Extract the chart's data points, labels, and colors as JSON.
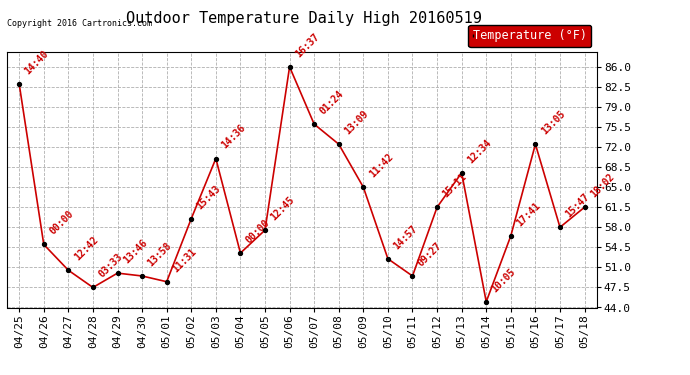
{
  "title": "Outdoor Temperature Daily High 20160519",
  "copyright": "Copyright 2016 Cartronics.com",
  "legend_label": "Temperature (°F)",
  "x_labels": [
    "04/25",
    "04/26",
    "04/27",
    "04/28",
    "04/29",
    "04/30",
    "05/01",
    "05/02",
    "05/03",
    "05/04",
    "05/05",
    "05/06",
    "05/07",
    "05/08",
    "05/09",
    "05/10",
    "05/11",
    "05/12",
    "05/13",
    "05/14",
    "05/15",
    "05/16",
    "05/17",
    "05/18"
  ],
  "y_values": [
    83.0,
    55.0,
    50.5,
    47.5,
    50.0,
    49.5,
    48.5,
    59.5,
    70.0,
    53.5,
    57.5,
    86.0,
    76.0,
    72.5,
    65.0,
    52.5,
    49.5,
    61.5,
    67.5,
    45.0,
    56.5,
    72.5,
    58.0,
    61.5
  ],
  "annotations": [
    "14:40",
    "00:00",
    "12:42",
    "03:33",
    "13:46",
    "13:58",
    "11:31",
    "15:43",
    "14:36",
    "00:00",
    "12:45",
    "16:37",
    "01:24",
    "13:09",
    "11:42",
    "14:57",
    "09:27",
    "15:11",
    "12:34",
    "10:05",
    "17:41",
    "13:05",
    "15:47",
    "18:02"
  ],
  "ylim_min": 44.0,
  "ylim_max": 88.5,
  "yticks": [
    44.0,
    47.5,
    51.0,
    54.5,
    58.0,
    61.5,
    65.0,
    68.5,
    72.0,
    75.5,
    79.0,
    82.5,
    86.0
  ],
  "line_color": "#cc0000",
  "marker_color": "#000000",
  "bg_color": "#ffffff",
  "grid_color": "#b0b0b0",
  "title_fontsize": 11,
  "annotation_fontsize": 7.0,
  "tick_fontsize": 8.0,
  "legend_bg": "#cc0000",
  "legend_fg": "#ffffff"
}
